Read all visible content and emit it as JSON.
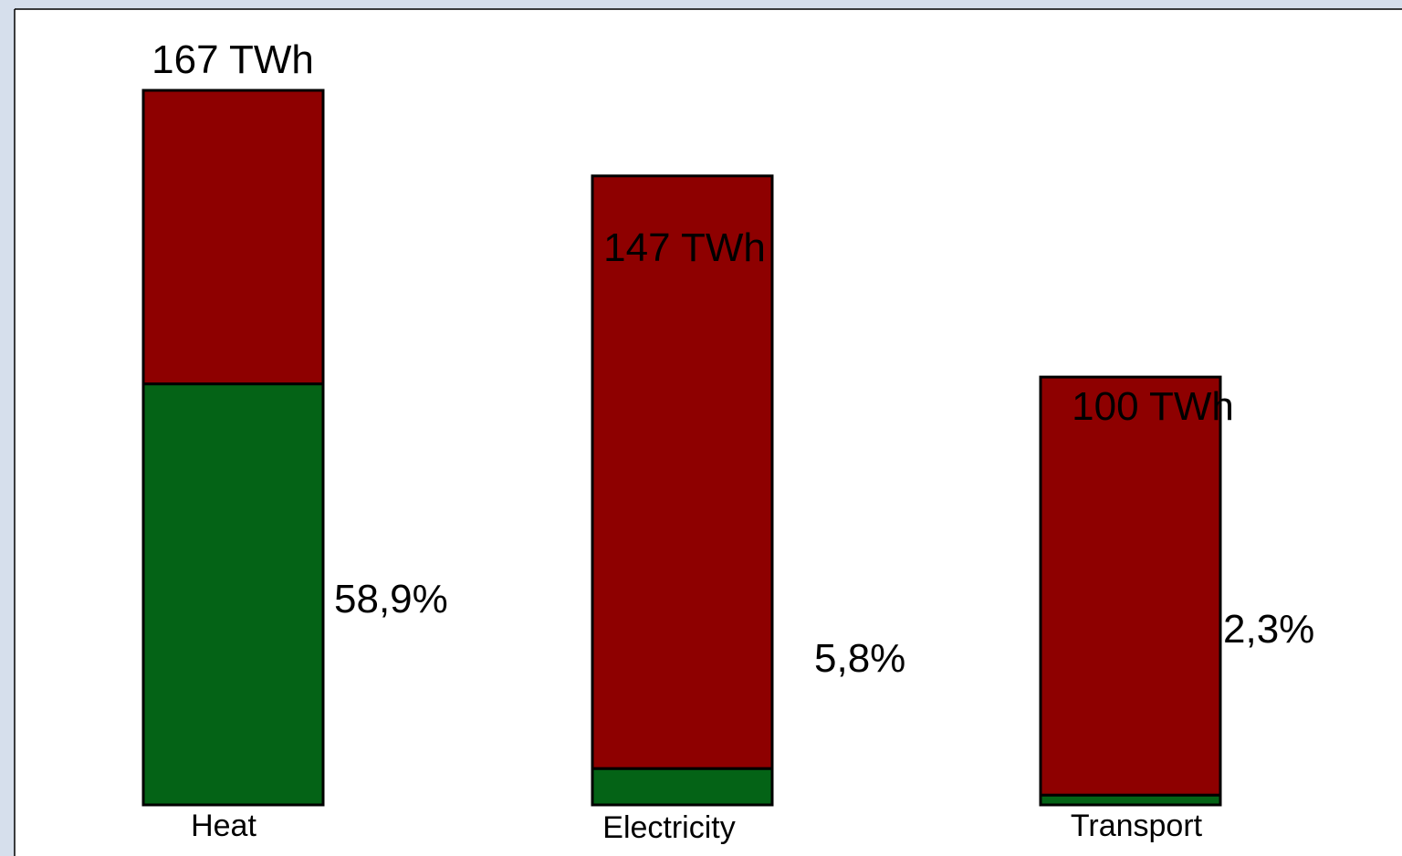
{
  "chart_data": {
    "type": "bar",
    "stacked": true,
    "categories": [
      "Heat",
      "Electricity",
      "Transport"
    ],
    "totals": [
      167,
      147,
      100
    ],
    "total_labels": [
      "167 TWh",
      "147 TWh",
      "100 TWh"
    ],
    "share_labels": [
      "58,9%",
      "5,8%",
      "2,3%"
    ],
    "series": [
      {
        "values": [
          98.4,
          8.5,
          2.3
        ],
        "color": "#046316"
      },
      {
        "values": [
          68.6,
          138.5,
          97.7
        ],
        "color": "#8e0000"
      }
    ],
    "ylim": [
      0,
      167
    ],
    "grid": false,
    "legend": "none"
  }
}
